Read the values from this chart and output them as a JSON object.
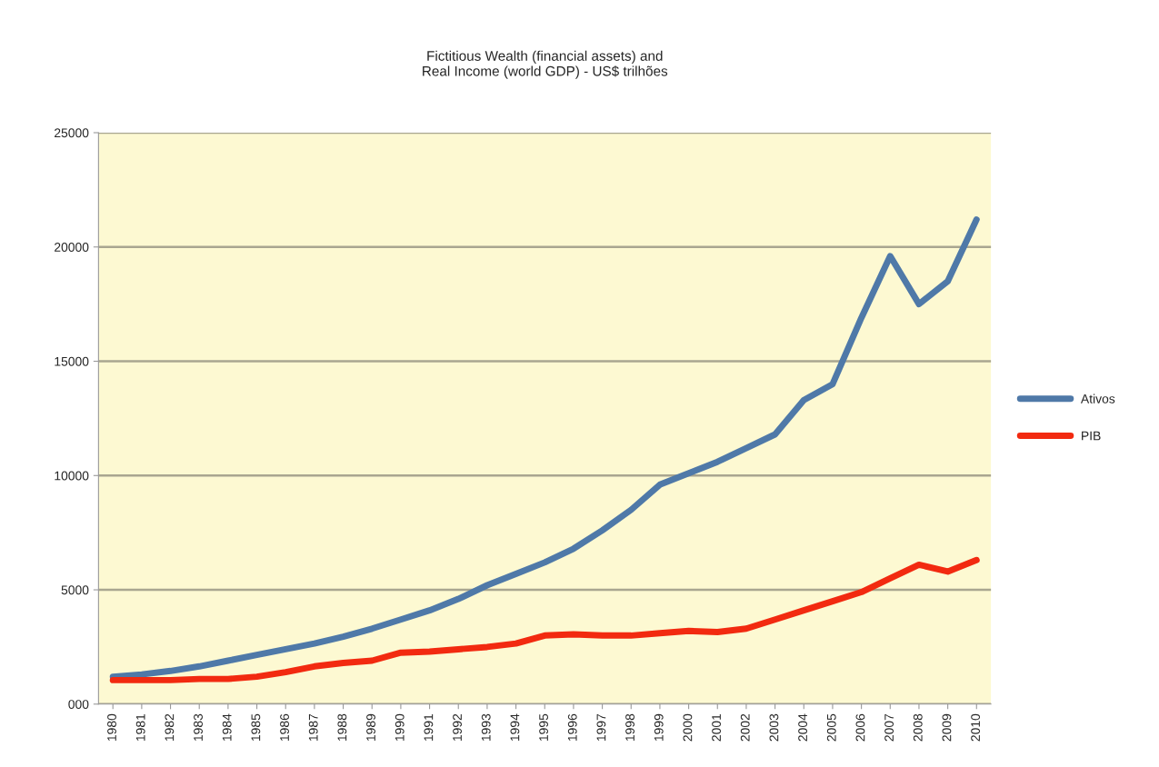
{
  "chart_data": {
    "type": "line",
    "title": "Fictitious Wealth (financial assets) and\nReal Income (world GDP) - US$ trilhões",
    "categories": [
      "1980",
      "1981",
      "1982",
      "1983",
      "1984",
      "1985",
      "1986",
      "1987",
      "1988",
      "1989",
      "1990",
      "1991",
      "1992",
      "1993",
      "1994",
      "1995",
      "1996",
      "1997",
      "1998",
      "1999",
      "2000",
      "2001",
      "2002",
      "2003",
      "2004",
      "2005",
      "2006",
      "2007",
      "2008",
      "2009",
      "2010"
    ],
    "series": [
      {
        "name": "Ativos",
        "color": "#4f79a8",
        "values": [
          1200,
          1300,
          1450,
          1650,
          1900,
          2150,
          2400,
          2650,
          2950,
          3300,
          3700,
          4100,
          4600,
          5200,
          5700,
          6200,
          6800,
          7600,
          8500,
          9600,
          10100,
          10600,
          11200,
          11800,
          13300,
          14000,
          16900,
          19600,
          17500,
          18500,
          21200
        ]
      },
      {
        "name": "PIB",
        "color": "#f22a10",
        "values": [
          1050,
          1050,
          1050,
          1100,
          1100,
          1200,
          1400,
          1650,
          1800,
          1900,
          2250,
          2300,
          2400,
          2500,
          2650,
          3000,
          3050,
          3000,
          3000,
          3100,
          3200,
          3150,
          3300,
          3700,
          4100,
          4500,
          4900,
          5500,
          6100,
          5800,
          6300
        ]
      }
    ],
    "ylim": [
      0,
      25000
    ],
    "yticks": [
      {
        "value": 0,
        "label": "000"
      },
      5000,
      10000,
      15000,
      20000,
      25000
    ],
    "grid": "y",
    "legend": "right",
    "marker": "none",
    "line_style": "solid"
  }
}
